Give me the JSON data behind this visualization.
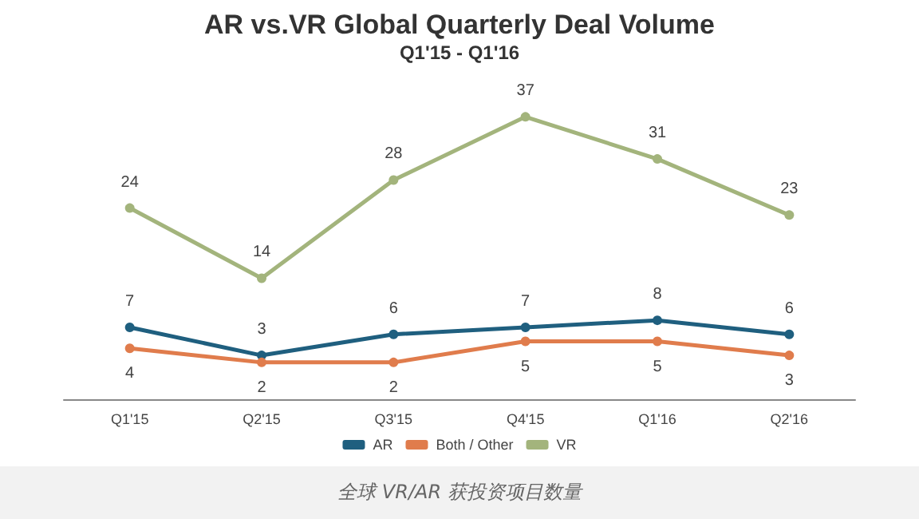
{
  "chart_data": {
    "type": "line",
    "title": "AR vs.VR Global Quarterly Deal Volume",
    "subtitle": "Q1'15 - Q1'16",
    "categories": [
      "Q1'15",
      "Q2'15",
      "Q3'15",
      "Q4'15",
      "Q1'16",
      "Q2'16"
    ],
    "series": [
      {
        "name": "AR",
        "color": "#1f5f7f",
        "values": [
          7,
          3,
          6,
          7,
          8,
          6
        ]
      },
      {
        "name": "Both / Other",
        "color": "#e07c4c",
        "values": [
          4,
          2,
          2,
          5,
          5,
          3
        ]
      },
      {
        "name": "VR",
        "color": "#a3b47c",
        "values": [
          24,
          14,
          28,
          37,
          31,
          23
        ]
      }
    ],
    "data_labels": true,
    "legend": "bottom",
    "marker": "circle",
    "grid": false,
    "tick_labels": "x",
    "annotations": [
      "全球 VR/AR 获投资项目数量"
    ]
  }
}
